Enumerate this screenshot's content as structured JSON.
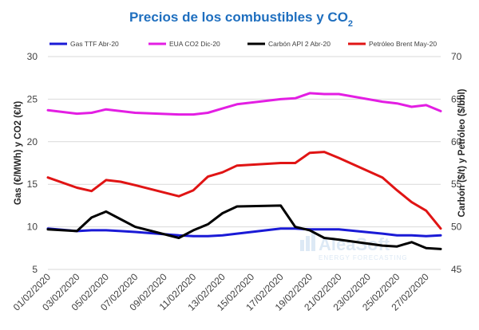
{
  "chart_data": {
    "type": "line",
    "title": "Precios de los combustibles y CO",
    "title_subscript": "2",
    "x": [
      "01/02/2020",
      "02/02/2020",
      "03/02/2020",
      "04/02/2020",
      "05/02/2020",
      "06/02/2020",
      "07/02/2020",
      "08/02/2020",
      "09/02/2020",
      "10/02/2020",
      "11/02/2020",
      "12/02/2020",
      "13/02/2020",
      "14/02/2020",
      "15/02/2020",
      "16/02/2020",
      "17/02/2020",
      "18/02/2020",
      "19/02/2020",
      "20/02/2020",
      "21/02/2020",
      "22/02/2020",
      "23/02/2020",
      "24/02/2020",
      "25/02/2020",
      "26/02/2020",
      "27/02/2020",
      "28/02/2020"
    ],
    "x_tick_labels": [
      "01/02/2020",
      "03/02/2020",
      "05/02/2020",
      "07/02/2020",
      "09/02/2020",
      "11/02/2020",
      "13/02/2020",
      "15/02/2020",
      "17/02/2020",
      "19/02/2020",
      "21/02/2020",
      "23/02/2020",
      "25/02/2020",
      "27/02/2020"
    ],
    "ylabel_left": "Gas (€/MWh) y CO2 (€/t)",
    "ylabel_right": "Carbón ($/t) y Petróleo ($/bbl)",
    "ylim_left": [
      5,
      30
    ],
    "ylim_right": [
      45,
      70
    ],
    "yticks_left": [
      5,
      10,
      15,
      20,
      25,
      30
    ],
    "yticks_right": [
      45,
      50,
      55,
      60,
      65,
      70
    ],
    "grid": "horizontal",
    "legend_position": "top",
    "series": [
      {
        "name": "Gas TTF Abr-20",
        "axis": "left",
        "color": "#1a1ad6",
        "x": [
          "01/02/2020",
          "03/02/2020",
          "04/02/2020",
          "05/02/2020",
          "06/02/2020",
          "07/02/2020",
          "10/02/2020",
          "11/02/2020",
          "12/02/2020",
          "13/02/2020",
          "14/02/2020",
          "17/02/2020",
          "18/02/2020",
          "19/02/2020",
          "20/02/2020",
          "21/02/2020",
          "24/02/2020",
          "25/02/2020",
          "26/02/2020",
          "27/02/2020",
          "28/02/2020"
        ],
        "values": [
          9.8,
          9.5,
          9.6,
          9.6,
          9.5,
          9.4,
          9.0,
          8.9,
          8.9,
          9.0,
          9.2,
          9.8,
          9.8,
          9.7,
          9.7,
          9.7,
          9.2,
          9.0,
          9.0,
          8.9,
          9.0
        ]
      },
      {
        "name": "EUA CO2 Dic-20",
        "axis": "left",
        "color": "#e31ee3",
        "x": [
          "01/02/2020",
          "03/02/2020",
          "04/02/2020",
          "05/02/2020",
          "06/02/2020",
          "07/02/2020",
          "10/02/2020",
          "11/02/2020",
          "12/02/2020",
          "13/02/2020",
          "14/02/2020",
          "17/02/2020",
          "18/02/2020",
          "19/02/2020",
          "20/02/2020",
          "21/02/2020",
          "24/02/2020",
          "25/02/2020",
          "26/02/2020",
          "27/02/2020",
          "28/02/2020"
        ],
        "values": [
          23.7,
          23.3,
          23.4,
          23.8,
          23.6,
          23.4,
          23.2,
          23.2,
          23.4,
          23.9,
          24.4,
          25.0,
          25.1,
          25.7,
          25.6,
          25.6,
          24.7,
          24.5,
          24.1,
          24.3,
          23.6
        ]
      },
      {
        "name": "Carbón API 2 Abr-20",
        "axis": "right",
        "color": "#000000",
        "x": [
          "01/02/2020",
          "03/02/2020",
          "04/02/2020",
          "05/02/2020",
          "06/02/2020",
          "07/02/2020",
          "10/02/2020",
          "11/02/2020",
          "12/02/2020",
          "13/02/2020",
          "14/02/2020",
          "17/02/2020",
          "18/02/2020",
          "19/02/2020",
          "20/02/2020",
          "21/02/2020",
          "24/02/2020",
          "25/02/2020",
          "26/02/2020",
          "27/02/2020",
          "28/02/2020"
        ],
        "values": [
          49.7,
          49.5,
          51.1,
          51.8,
          50.9,
          50.0,
          48.7,
          49.6,
          50.3,
          51.6,
          52.4,
          52.5,
          50.0,
          49.6,
          48.7,
          48.5,
          47.8,
          47.7,
          48.2,
          47.5,
          47.4
        ]
      },
      {
        "name": "Petróleo Brent May-20",
        "axis": "right",
        "color": "#e01414",
        "x": [
          "01/02/2020",
          "03/02/2020",
          "04/02/2020",
          "05/02/2020",
          "06/02/2020",
          "07/02/2020",
          "10/02/2020",
          "11/02/2020",
          "12/02/2020",
          "13/02/2020",
          "14/02/2020",
          "17/02/2020",
          "18/02/2020",
          "19/02/2020",
          "20/02/2020",
          "21/02/2020",
          "24/02/2020",
          "25/02/2020",
          "26/02/2020",
          "27/02/2020",
          "28/02/2020"
        ],
        "values": [
          55.8,
          54.6,
          54.2,
          55.5,
          55.3,
          54.9,
          53.6,
          54.3,
          55.9,
          56.4,
          57.2,
          57.5,
          57.5,
          58.7,
          58.8,
          58.1,
          55.8,
          54.3,
          52.9,
          51.9,
          49.8
        ]
      }
    ]
  },
  "watermark": {
    "brand": "AleaSoft",
    "tagline": "ENERGY FORECASTING",
    "color": "#dde9f5"
  }
}
